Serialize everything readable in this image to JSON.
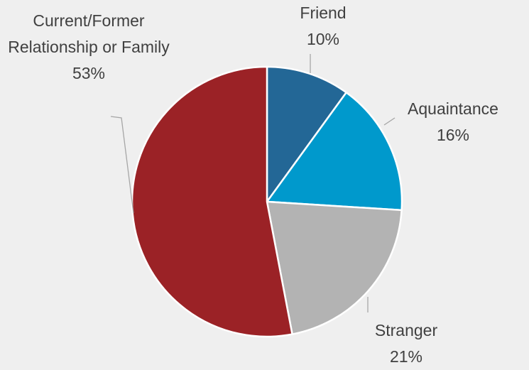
{
  "chart_data": {
    "type": "pie",
    "categories": [
      "Friend",
      "Aquaintance",
      "Stranger",
      "Current/Former Relationship or Family"
    ],
    "values": [
      10,
      16,
      21,
      53
    ],
    "value_labels": [
      "10%",
      "16%",
      "21%",
      "53%"
    ],
    "colors": [
      "#236796",
      "#0099cc",
      "#b3b3b3",
      "#9b2226"
    ]
  }
}
